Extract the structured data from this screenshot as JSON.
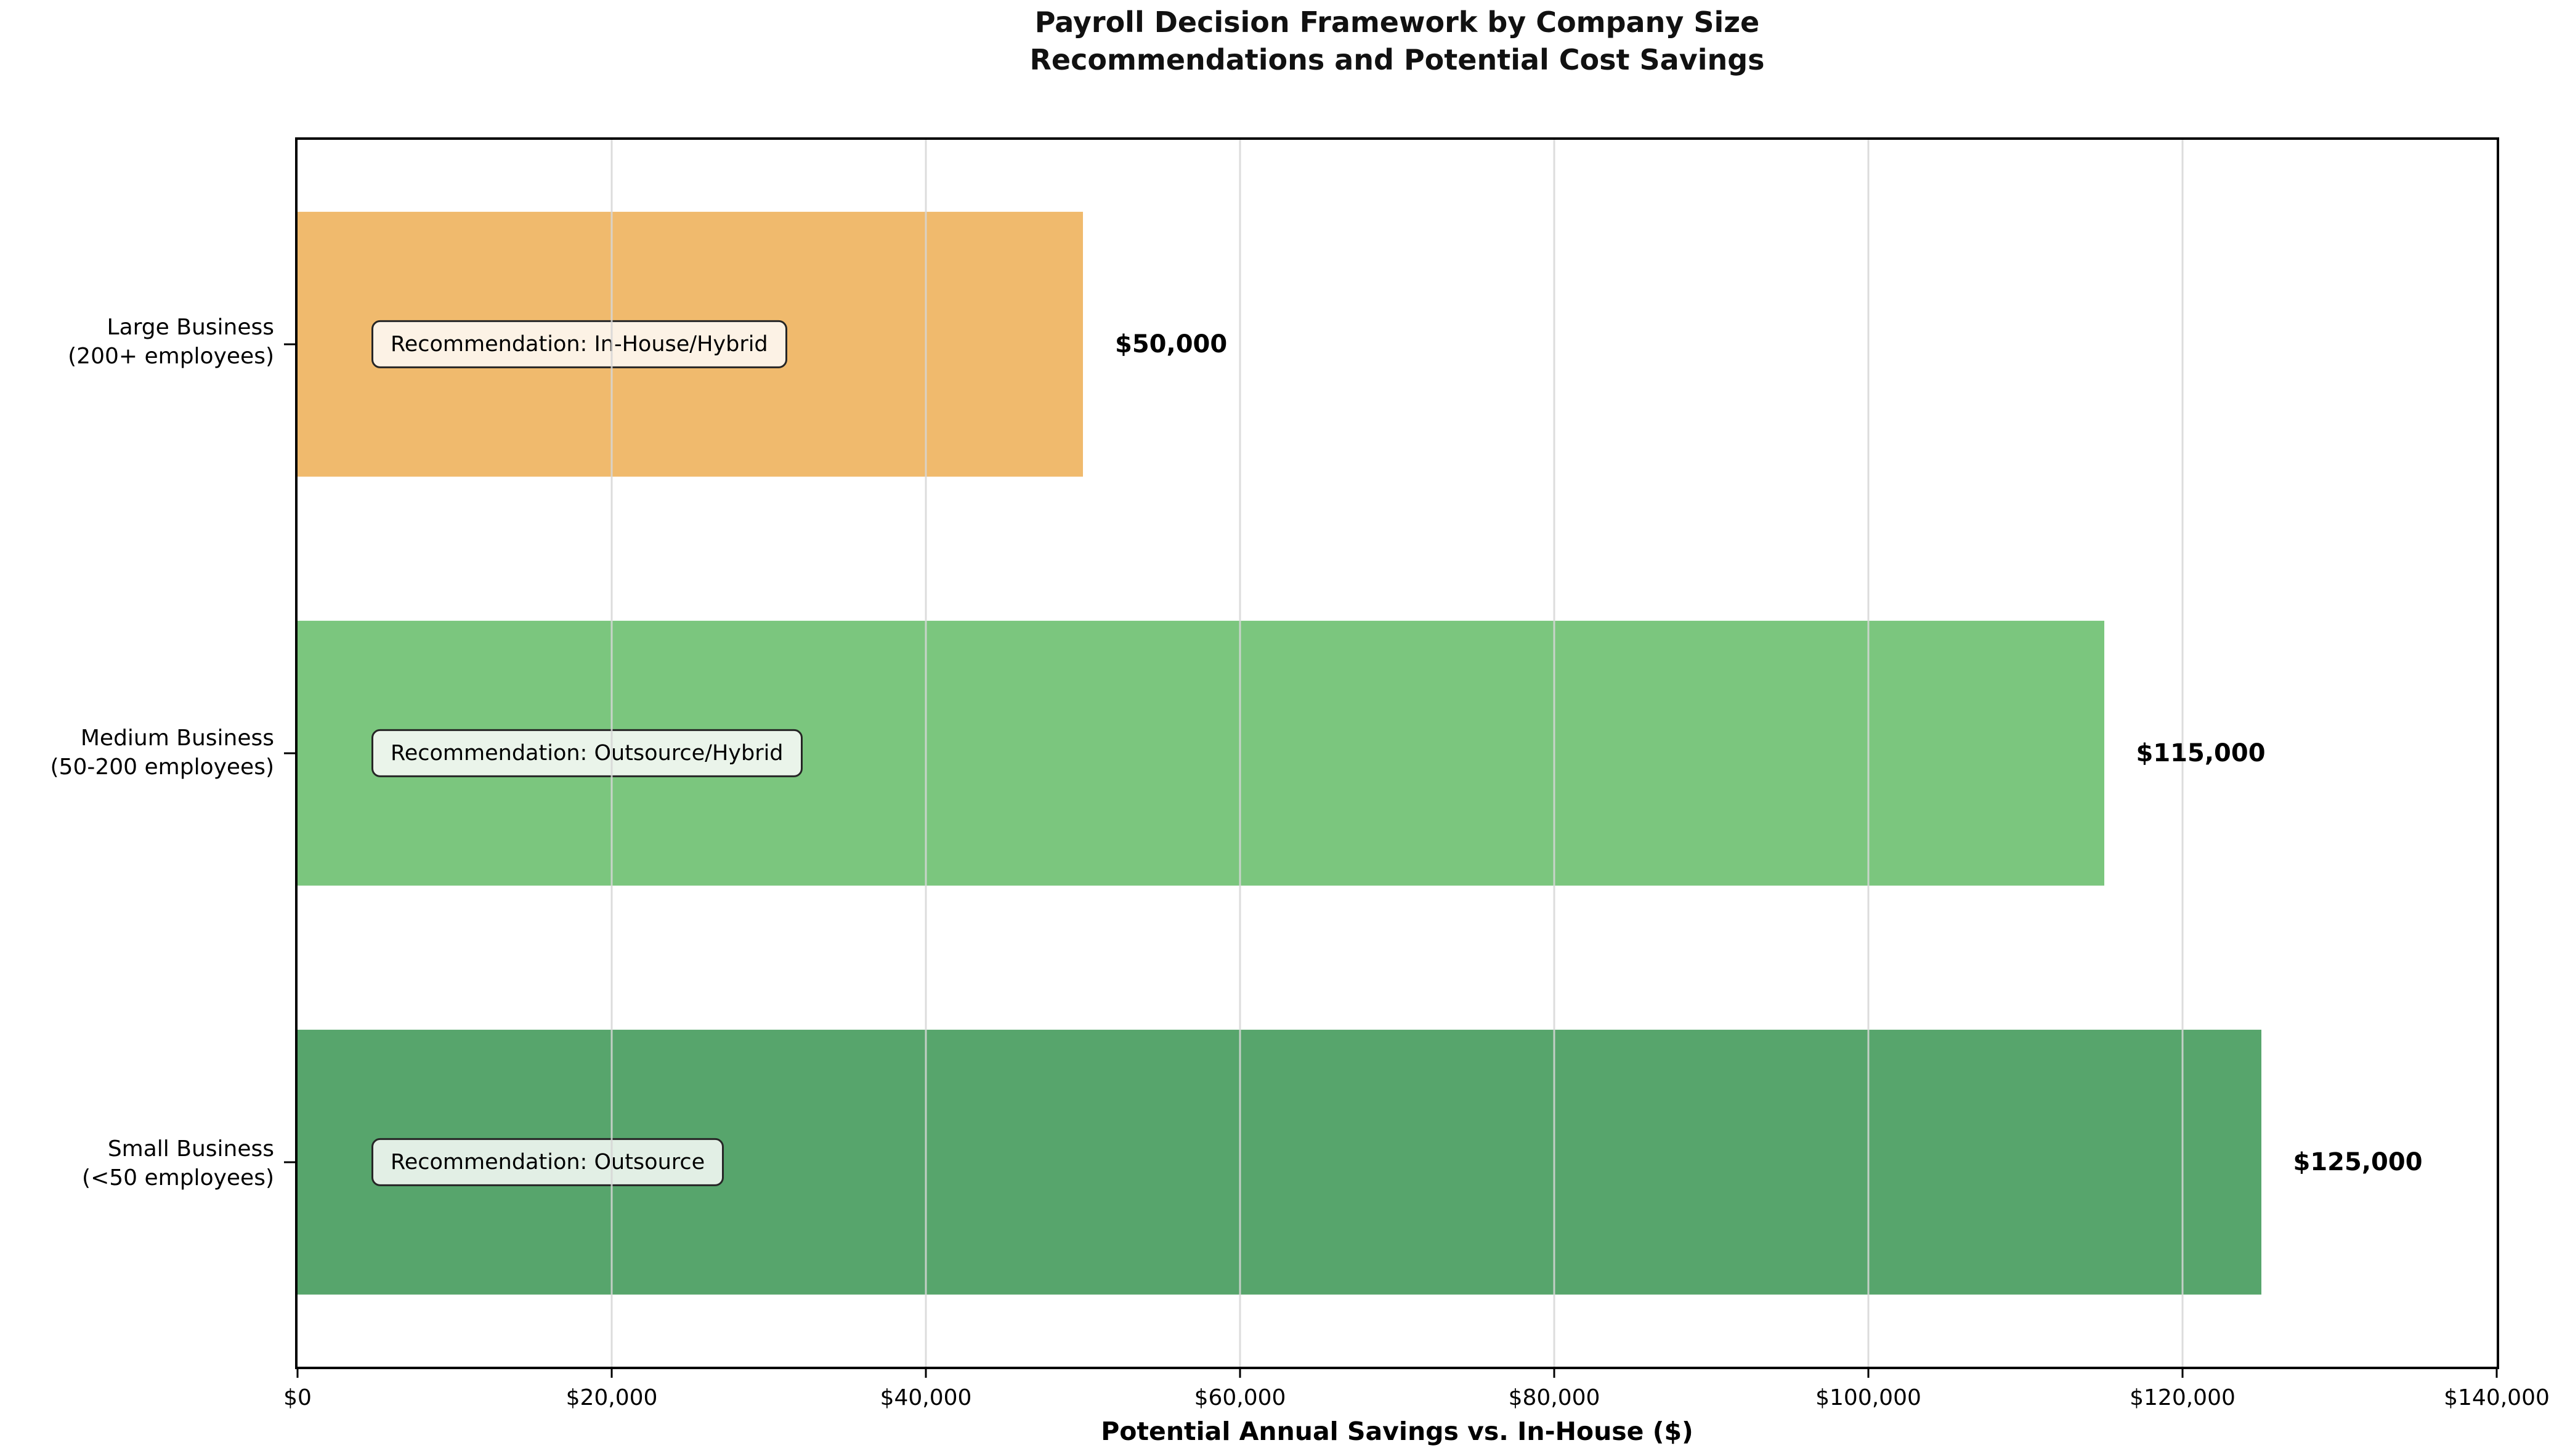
{
  "title": {
    "line1": "Payroll Decision Framework by Company Size",
    "line2": "Recommendations and Potential Cost Savings"
  },
  "chart_data": {
    "type": "bar",
    "orientation": "horizontal",
    "title": "Payroll Decision Framework by Company Size\nRecommendations and Potential Cost Savings",
    "xlabel": "Potential Annual Savings vs. In-House ($)",
    "ylabel": "",
    "xlim": [
      0,
      140000
    ],
    "x_ticks_values": [
      0,
      20000,
      40000,
      60000,
      80000,
      100000,
      120000,
      140000
    ],
    "x_ticks": [
      "$0",
      "$20,000",
      "$40,000",
      "$60,000",
      "$80,000",
      "$100,000",
      "$120,000",
      "$140,000"
    ],
    "grid": true,
    "legend": "none",
    "categories": [
      "Large Business (200+ employees)",
      "Medium Business (50-200 employees)",
      "Small Business (<50 employees)"
    ],
    "values": [
      50000,
      115000,
      125000
    ],
    "rows": [
      {
        "category_line1": "Large Business",
        "category_line2": "(200+ employees)",
        "value": 50000,
        "value_label": "$50,000",
        "recommendation": "Recommendation: In-House/Hybrid",
        "bar_color": "#F0BA6D",
        "box_color": "#FCF2E5"
      },
      {
        "category_line1": "Medium Business",
        "category_line2": "(50-200 employees)",
        "value": 115000,
        "value_label": "$115,000",
        "recommendation": "Recommendation: Outsource/Hybrid",
        "bar_color": "#7BC67E",
        "box_color": "#EAF4EA"
      },
      {
        "category_line1": "Small Business",
        "category_line2": "(<50 employees)",
        "value": 125000,
        "value_label": "$125,000",
        "recommendation": "Recommendation: Outsource",
        "bar_color": "#57A56C",
        "box_color": "#E2EFE5"
      }
    ],
    "colors": {
      "grid": "#D6D6D6",
      "spine": "#000000",
      "box_border": "#262626",
      "text": "#000000"
    }
  }
}
